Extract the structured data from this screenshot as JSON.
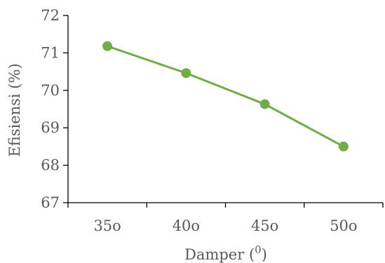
{
  "chart_data": {
    "type": "line",
    "title": "",
    "xlabel": "Damper (",
    "xlabel_superscript": "0",
    "xlabel_suffix": ")",
    "ylabel": "Efisiensi (%)",
    "categories": [
      "35o",
      "40o",
      "45o",
      "50o"
    ],
    "series": [
      {
        "values": [
          71.18,
          70.46,
          69.63,
          68.5
        ]
      }
    ],
    "ylim": [
      67,
      72
    ],
    "yticks": [
      "67",
      "68",
      "69",
      "70",
      "71",
      "72"
    ],
    "grid": false,
    "legend": "none",
    "line_color": "#70AD47"
  }
}
